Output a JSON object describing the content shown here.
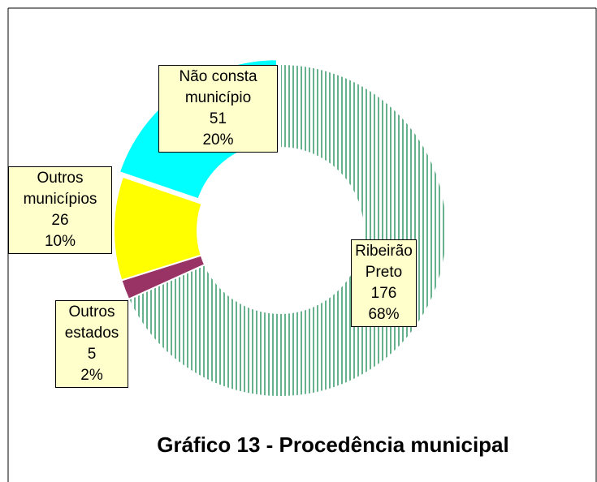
{
  "chart_data": {
    "type": "donut",
    "title": "Gráfico 13 - Procedência municipal",
    "categories": [
      "Ribeirão Preto",
      "Outros estados",
      "Outros municípios",
      "Não consta município"
    ],
    "values": [
      176,
      5,
      26,
      51
    ],
    "percent_labels": [
      "68%",
      "2%",
      "10%",
      "20%"
    ],
    "colors": [
      "#339966",
      "#993366",
      "#ffff00",
      "#00ffff"
    ],
    "exploded": [
      false,
      false,
      false,
      true
    ]
  }
}
